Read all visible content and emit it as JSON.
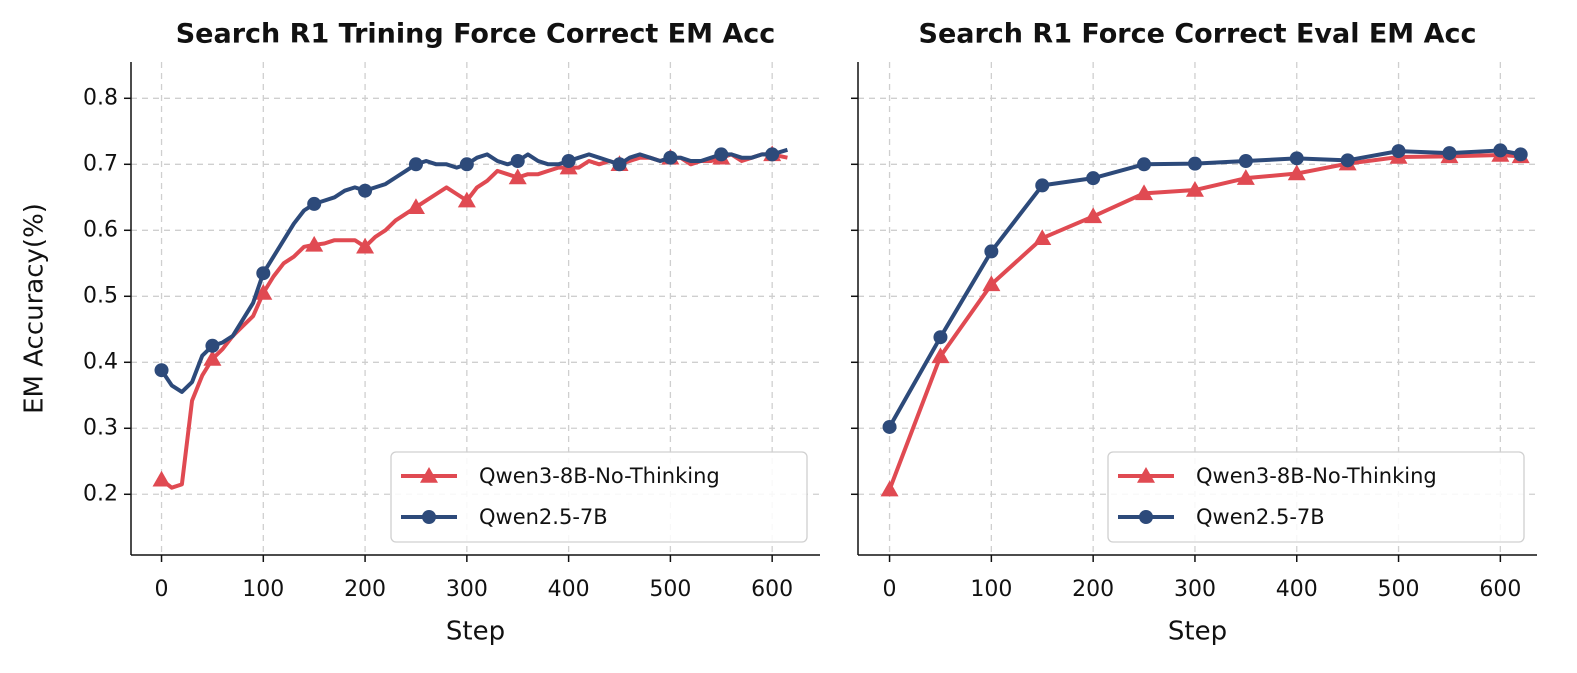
{
  "chart_data": [
    {
      "type": "line",
      "title": "Search R1 Trining Force Correct EM Acc",
      "x_label": "Step",
      "y_label": "EM Accuracy(%)",
      "x": [
        0,
        10,
        20,
        30,
        40,
        50,
        60,
        70,
        80,
        90,
        100,
        110,
        120,
        130,
        140,
        150,
        160,
        170,
        180,
        190,
        200,
        210,
        220,
        230,
        240,
        250,
        260,
        270,
        280,
        290,
        300,
        310,
        320,
        330,
        340,
        350,
        360,
        370,
        380,
        390,
        400,
        410,
        420,
        430,
        440,
        450,
        460,
        470,
        480,
        490,
        500,
        510,
        520,
        530,
        540,
        550,
        560,
        570,
        580,
        590,
        600,
        615
      ],
      "series": [
        {
          "name": "Qwen3-8B-No-Thinking",
          "color": "#e04a52",
          "marker": "triangle",
          "values": [
            0.222,
            0.21,
            0.215,
            0.342,
            0.38,
            0.405,
            0.42,
            0.44,
            0.455,
            0.47,
            0.505,
            0.53,
            0.55,
            0.56,
            0.575,
            0.578,
            0.58,
            0.585,
            0.585,
            0.585,
            0.575,
            0.59,
            0.6,
            0.615,
            0.625,
            0.635,
            0.645,
            0.655,
            0.665,
            0.655,
            0.645,
            0.665,
            0.675,
            0.69,
            0.685,
            0.68,
            0.685,
            0.685,
            0.69,
            0.695,
            0.695,
            0.695,
            0.705,
            0.7,
            0.705,
            0.7,
            0.705,
            0.71,
            0.71,
            0.705,
            0.71,
            0.71,
            0.7,
            0.705,
            0.705,
            0.71,
            0.715,
            0.705,
            0.71,
            0.715,
            0.715,
            0.71
          ]
        },
        {
          "name": "Qwen2.5-7B",
          "color": "#2d4a7a",
          "marker": "circle",
          "values": [
            0.388,
            0.365,
            0.355,
            0.37,
            0.41,
            0.425,
            0.43,
            0.44,
            0.465,
            0.49,
            0.535,
            0.56,
            0.585,
            0.61,
            0.63,
            0.64,
            0.645,
            0.65,
            0.66,
            0.665,
            0.66,
            0.665,
            0.67,
            0.68,
            0.69,
            0.7,
            0.705,
            0.7,
            0.7,
            0.695,
            0.7,
            0.71,
            0.715,
            0.705,
            0.7,
            0.705,
            0.715,
            0.705,
            0.7,
            0.7,
            0.705,
            0.71,
            0.715,
            0.71,
            0.705,
            0.7,
            0.71,
            0.715,
            0.71,
            0.705,
            0.71,
            0.71,
            0.705,
            0.705,
            0.71,
            0.715,
            0.715,
            0.71,
            0.71,
            0.715,
            0.715,
            0.722
          ]
        }
      ],
      "markevery": 5,
      "xlim": [
        -30,
        647
      ],
      "xticks": [
        0,
        100,
        200,
        300,
        400,
        500,
        600
      ],
      "ylim": [
        0.108,
        0.855
      ],
      "yticks": [
        0.2,
        0.3,
        0.4,
        0.5,
        0.6,
        0.7,
        0.8
      ],
      "show_ytick_labels": true,
      "grid": true,
      "legend": "lower right"
    },
    {
      "type": "line",
      "title": "Search R1 Force Correct Eval EM Acc",
      "x_label": "Step",
      "x": [
        0,
        50,
        100,
        150,
        200,
        250,
        300,
        350,
        400,
        450,
        500,
        550,
        600,
        620
      ],
      "series": [
        {
          "name": "Qwen3-8B-No-Thinking",
          "color": "#e04a52",
          "marker": "triangle",
          "values": [
            0.207,
            0.409,
            0.518,
            0.588,
            0.621,
            0.656,
            0.661,
            0.679,
            0.686,
            0.701,
            0.711,
            0.712,
            0.714,
            0.712
          ]
        },
        {
          "name": "Qwen2.5-7B",
          "color": "#2d4a7a",
          "marker": "circle",
          "values": [
            0.302,
            0.438,
            0.568,
            0.668,
            0.679,
            0.7,
            0.701,
            0.705,
            0.709,
            0.706,
            0.72,
            0.717,
            0.721,
            0.715
          ]
        }
      ],
      "markevery": 1,
      "xlim": [
        -31,
        636
      ],
      "xticks": [
        0,
        100,
        200,
        300,
        400,
        500,
        600
      ],
      "ylim": [
        0.108,
        0.855
      ],
      "yticks": [
        0.2,
        0.3,
        0.4,
        0.5,
        0.6,
        0.7,
        0.8
      ],
      "show_ytick_labels": false,
      "grid": true,
      "legend": "lower right"
    }
  ]
}
